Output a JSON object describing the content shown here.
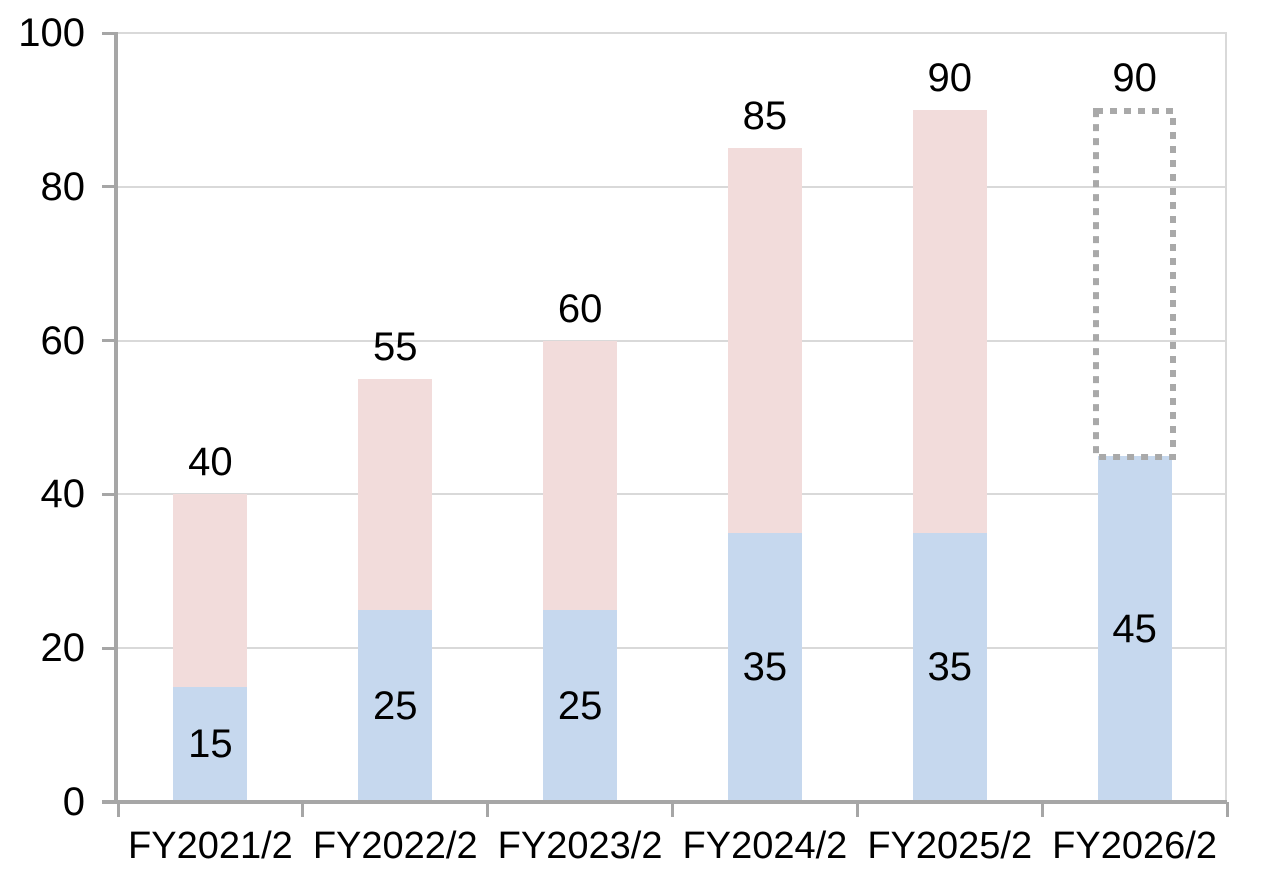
{
  "chart_data": {
    "type": "bar",
    "subtype": "stacked-column",
    "title": "",
    "categories": [
      "FY2021/2",
      "FY2022/2",
      "FY2023/2",
      "FY2024/2",
      "FY2025/2",
      "FY2026/2"
    ],
    "series": [
      {
        "name": "lower-segment",
        "color": "#c6d8ee",
        "values": [
          15,
          25,
          25,
          35,
          35,
          45
        ]
      },
      {
        "name": "upper-segment",
        "color": "#f2dcdb",
        "values": [
          25,
          30,
          35,
          50,
          55,
          0
        ]
      }
    ],
    "totals": [
      40,
      55,
      60,
      85,
      90,
      90
    ],
    "inside_labels": [
      "15",
      "25",
      "25",
      "35",
      "35",
      "45"
    ],
    "total_labels": [
      "40",
      "55",
      "60",
      "85",
      "90",
      "90"
    ],
    "forecast_box": {
      "category": "FY2026/2",
      "category_index": 5,
      "from": 45,
      "to": 90,
      "style": "dashed-outline",
      "border_color": "#a9a9a9"
    },
    "y_axis": {
      "min": 0,
      "max": 100,
      "step": 20,
      "tick_labels": [
        "0",
        "20",
        "40",
        "60",
        "80",
        "100"
      ]
    },
    "grid": true,
    "legend": "none",
    "colors": {
      "grid": "#d9d9d9",
      "axis": "#a6a6a6",
      "text": "#000000",
      "background": "#ffffff"
    }
  }
}
